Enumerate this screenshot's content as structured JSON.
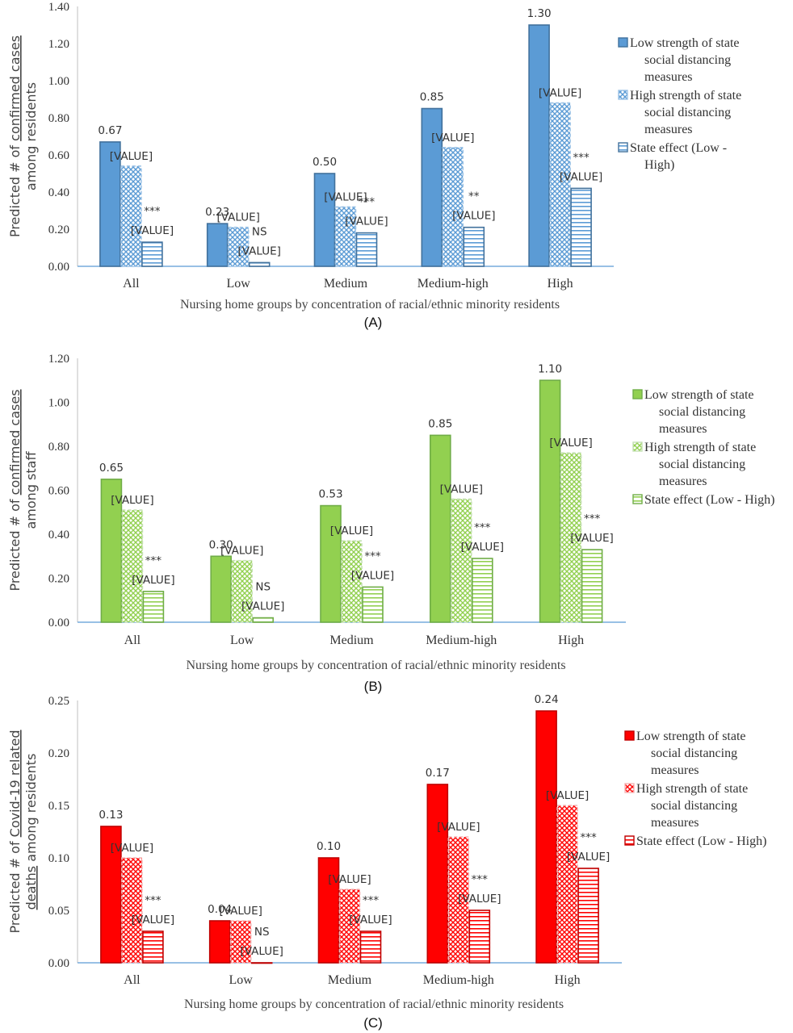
{
  "chart_data": [
    {
      "type": "bar",
      "panel_label": "(A)",
      "ylabel_parts": [
        "Predicted # of ",
        "confirmed cases",
        "among residents"
      ],
      "xlabel": "Nursing home groups by concentration of racial/ethnic minority residents",
      "categories": [
        "All",
        "Low",
        "Medium",
        "Medium-high",
        "High"
      ],
      "ylim": [
        0,
        1.4
      ],
      "yticks": [
        "0.00",
        "0.20",
        "0.40",
        "0.60",
        "0.80",
        "1.00",
        "1.20",
        "1.40"
      ],
      "ytick_values": [
        0,
        0.2,
        0.4,
        0.6,
        0.8,
        1.0,
        1.2,
        1.4
      ],
      "grid": false,
      "legend_position": "right",
      "colors": {
        "fill": "#5B9BD5",
        "stroke": "#41719C",
        "light": "#9DC3E6"
      },
      "series": [
        {
          "name": "Low strength of state social distancing measures",
          "legend_lines": [
            "Low strength of state",
            "social distancing",
            "measures"
          ],
          "pattern": "solid",
          "values": [
            0.67,
            0.23,
            0.5,
            0.85,
            1.3
          ],
          "labels": [
            "0.67",
            "0.23",
            "0.50",
            "0.85",
            "1.30"
          ]
        },
        {
          "name": "High strength of state social distancing measures",
          "legend_lines": [
            "High strength of state",
            "social distancing",
            "measures"
          ],
          "pattern": "crosshatch",
          "values": [
            0.54,
            0.21,
            0.32,
            0.64,
            0.88
          ],
          "labels": [
            "[VALUE]",
            "[VALUE]",
            "[VALUE]",
            "[VALUE]",
            "[VALUE]"
          ]
        },
        {
          "name": "State effect (Low - High)",
          "legend_lines": [
            "State effect (Low -",
            "High)"
          ],
          "pattern": "horizontal",
          "values": [
            0.13,
            0.02,
            0.18,
            0.21,
            0.42
          ],
          "labels": [
            "[VALUE]",
            "[VALUE]",
            "[VALUE]",
            "[VALUE]",
            "[VALUE]"
          ]
        }
      ],
      "significance": [
        "***",
        "NS",
        "***",
        "**",
        "***"
      ]
    },
    {
      "type": "bar",
      "panel_label": "(B)",
      "ylabel_parts": [
        "Predicted # of ",
        "confirmed cases",
        "among staff"
      ],
      "xlabel": "Nursing home groups by concentration of racial/ethnic minority residents",
      "categories": [
        "All",
        "Low",
        "Medium",
        "Medium-high",
        "High"
      ],
      "ylim": [
        0,
        1.2
      ],
      "yticks": [
        "0.00",
        "0.20",
        "0.40",
        "0.60",
        "0.80",
        "1.00",
        "1.20"
      ],
      "ytick_values": [
        0,
        0.2,
        0.4,
        0.6,
        0.8,
        1.0,
        1.2
      ],
      "grid": false,
      "legend_position": "right",
      "colors": {
        "fill": "#92D050",
        "stroke": "#70AD47",
        "light": "#C5E0B4"
      },
      "series": [
        {
          "name": "Low strength of state social distancing measures",
          "legend_lines": [
            "Low strength of state",
            "social distancing",
            "measures"
          ],
          "pattern": "solid",
          "values": [
            0.65,
            0.3,
            0.53,
            0.85,
            1.1
          ],
          "labels": [
            "0.65",
            "0.30",
            "0.53",
            "0.85",
            "1.10"
          ]
        },
        {
          "name": "High strength of state social distancing measures",
          "legend_lines": [
            "High strength of state",
            "social distancing",
            "measures"
          ],
          "pattern": "crosshatch",
          "values": [
            0.51,
            0.28,
            0.37,
            0.56,
            0.77
          ],
          "labels": [
            "[VALUE]",
            "[VALUE]",
            "[VALUE]",
            "[VALUE]",
            "[VALUE]"
          ]
        },
        {
          "name": "State effect (Low - High)",
          "legend_lines": [
            "State effect (Low - High)"
          ],
          "pattern": "horizontal",
          "values": [
            0.14,
            0.02,
            0.16,
            0.29,
            0.33
          ],
          "labels": [
            "[VALUE]",
            "[VALUE]",
            "[VALUE]",
            "[VALUE]",
            "[VALUE]"
          ]
        }
      ],
      "significance": [
        "***",
        "NS",
        "***",
        "***",
        "***"
      ]
    },
    {
      "type": "bar",
      "panel_label": "(C)",
      "ylabel_parts": [
        "Predicted # of ",
        "Covid-19 related",
        "deaths",
        " among residents"
      ],
      "xlabel": "Nursing home groups by concentration of racial/ethnic minority residents",
      "categories": [
        "All",
        "Low",
        "Medium",
        "Medium-high",
        "High"
      ],
      "ylim": [
        0,
        0.25
      ],
      "yticks": [
        "0.00",
        "0.05",
        "0.10",
        "0.15",
        "0.20",
        "0.25"
      ],
      "ytick_values": [
        0,
        0.05,
        0.1,
        0.15,
        0.2,
        0.25
      ],
      "grid": false,
      "legend_position": "right",
      "colors": {
        "fill": "#FF0000",
        "stroke": "#C00000",
        "light": "#F4B6B6"
      },
      "series": [
        {
          "name": "Low strength of state social distancing measures",
          "legend_lines": [
            "Low strength of state",
            "social distancing",
            "measures"
          ],
          "pattern": "solid",
          "values": [
            0.13,
            0.04,
            0.1,
            0.17,
            0.24
          ],
          "labels": [
            "0.13",
            "0.04",
            "0.10",
            "0.17",
            "0.24"
          ]
        },
        {
          "name": "High strength of state social distancing measures",
          "legend_lines": [
            "High strength of state",
            "social distancing",
            "measures"
          ],
          "pattern": "crosshatch",
          "values": [
            0.1,
            0.04,
            0.07,
            0.12,
            0.15
          ],
          "labels": [
            "[VALUE]",
            "[VALUE]",
            "[VALUE]",
            "[VALUE]",
            "[VALUE]"
          ]
        },
        {
          "name": "State effect (Low - High)",
          "legend_lines": [
            "State effect (Low - High)"
          ],
          "pattern": "horizontal",
          "values": [
            0.03,
            0.0,
            0.03,
            0.05,
            0.09
          ],
          "labels": [
            "[VALUE]",
            "[VALUE]",
            "[VALUE]",
            "[VALUE]",
            "[VALUE]"
          ]
        }
      ],
      "significance": [
        "***",
        "NS",
        "***",
        "***",
        "***"
      ]
    }
  ]
}
